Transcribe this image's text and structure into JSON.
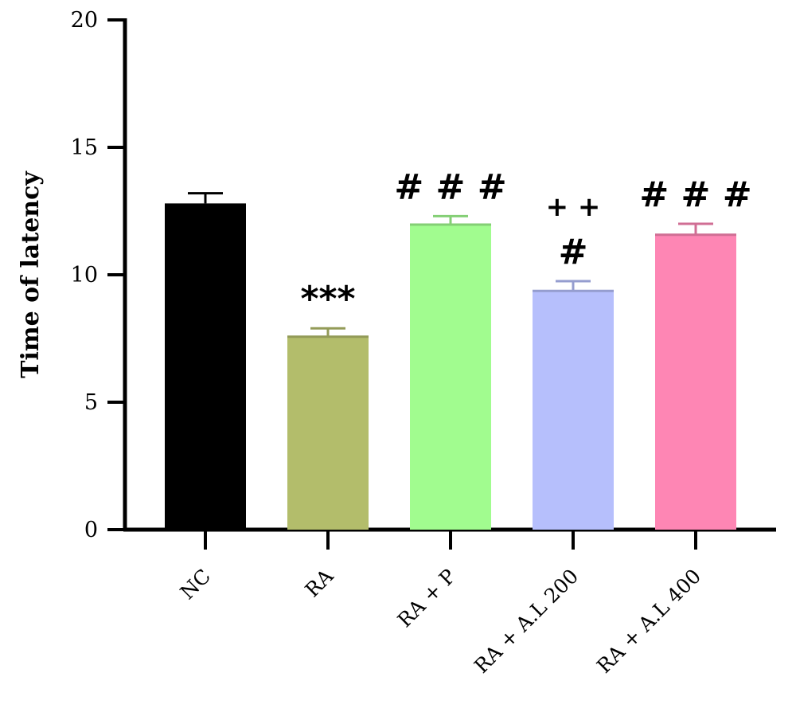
{
  "chart_data": {
    "type": "bar",
    "title": "",
    "xlabel": "",
    "ylabel": "Time of latency",
    "ylim": [
      0,
      20
    ],
    "yticks": [
      "0",
      "5",
      "10",
      "15",
      "20"
    ],
    "categories": [
      "NC",
      "RA",
      "RA + P",
      "RA + A.L 200",
      "RA + A.L 400"
    ],
    "values": [
      12.8,
      7.6,
      12.0,
      9.4,
      11.6
    ],
    "errors": [
      0.4,
      0.3,
      0.3,
      0.35,
      0.4
    ],
    "colors": [
      "#000000",
      "#b3bd6b",
      "#a1fc8f",
      "#b6bffc",
      "#fe86b4"
    ],
    "annotations": [
      {
        "category": "RA",
        "lines": [
          "***"
        ]
      },
      {
        "category": "RA + P",
        "lines": [
          "# # #"
        ]
      },
      {
        "category": "RA + A.L 200",
        "lines": [
          "+ +",
          "#"
        ]
      },
      {
        "category": "RA + A.L 400",
        "lines": [
          "# # #"
        ]
      }
    ]
  }
}
